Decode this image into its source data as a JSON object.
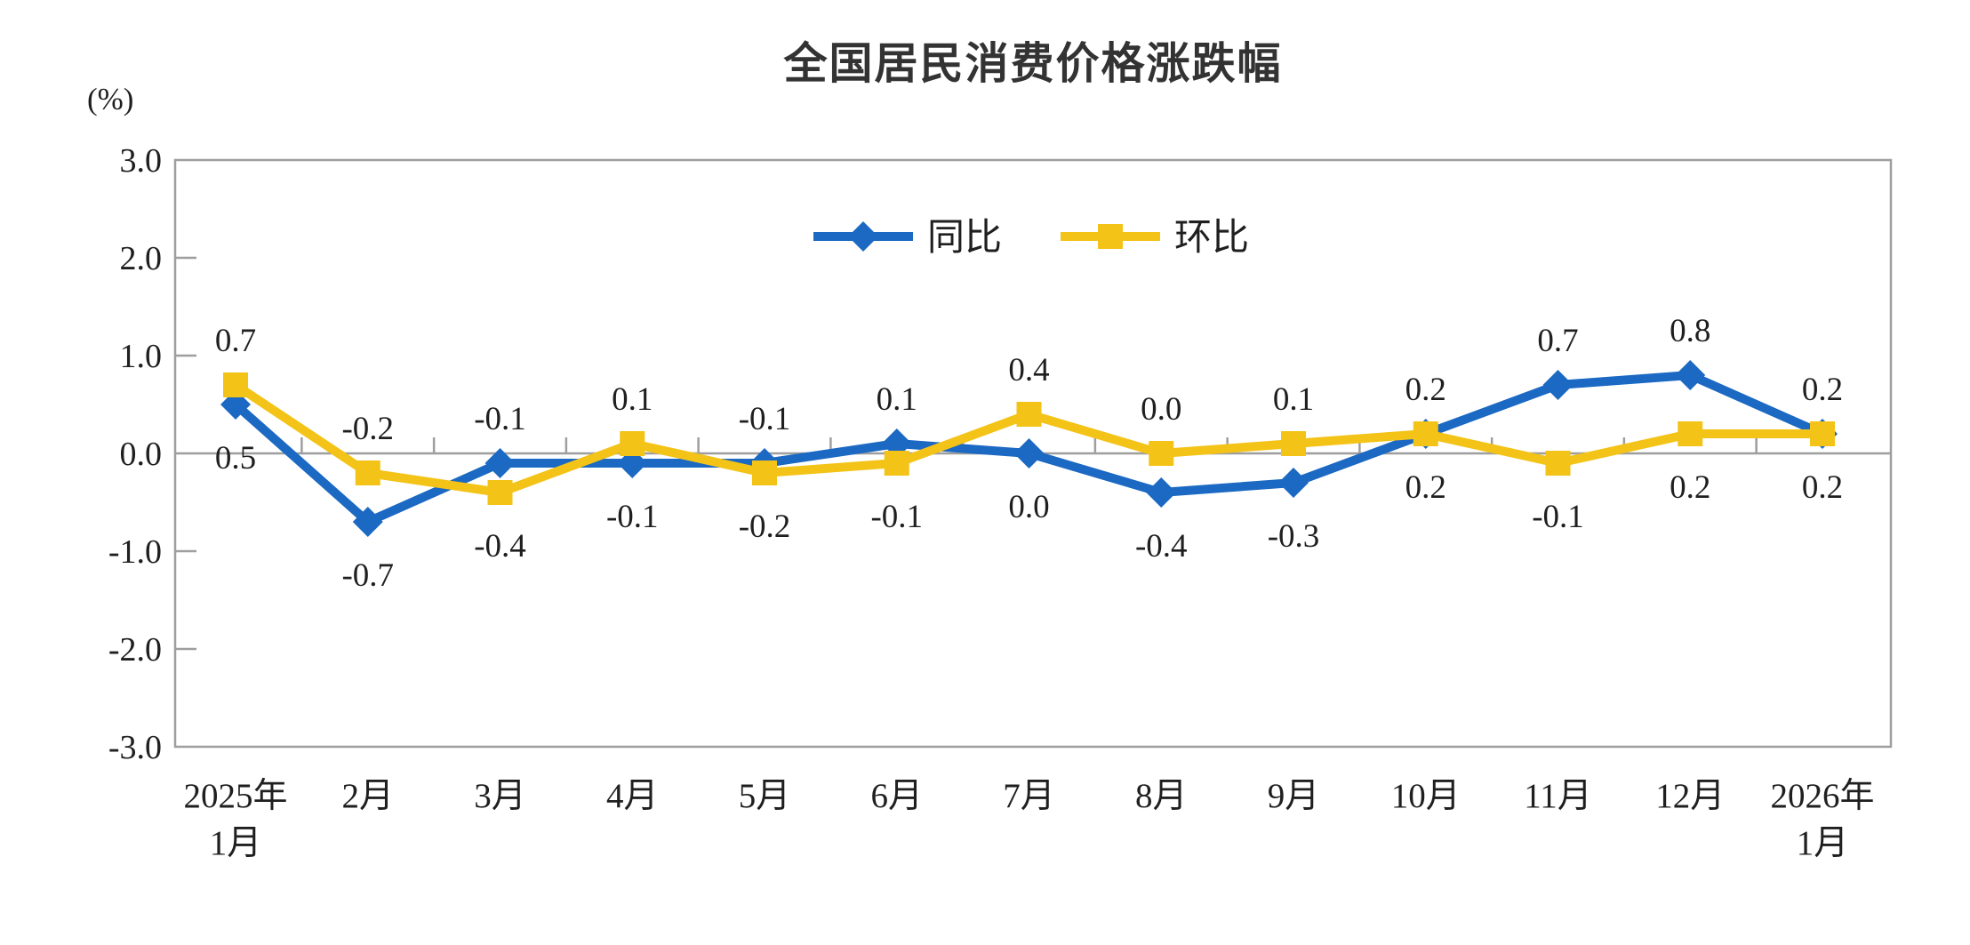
{
  "page": {
    "background": "#ffffff"
  },
  "chart_data": {
    "type": "line",
    "title": "全国居民消费价格涨跌幅",
    "unit_label": "(%)",
    "xlabel": "",
    "ylabel": "(%)",
    "ylim": [
      -3.0,
      3.0
    ],
    "ytick_interval": 1.0,
    "ytick_labels": [
      "3.0",
      "2.0",
      "1.0",
      "0.0",
      "-1.0",
      "-2.0",
      "-3.0"
    ],
    "grid": false,
    "legend_position": "top-center-inside",
    "categories": [
      "2025年1月",
      "2月",
      "3月",
      "4月",
      "5月",
      "6月",
      "7月",
      "8月",
      "9月",
      "10月",
      "11月",
      "12月",
      "2026年1月"
    ],
    "categories_display": [
      [
        "2025年",
        "1月"
      ],
      [
        "2月"
      ],
      [
        "3月"
      ],
      [
        "4月"
      ],
      [
        "5月"
      ],
      [
        "6月"
      ],
      [
        "7月"
      ],
      [
        "8月"
      ],
      [
        "9月"
      ],
      [
        "10月"
      ],
      [
        "11月"
      ],
      [
        "12月"
      ],
      [
        "2026年",
        "1月"
      ]
    ],
    "series": [
      {
        "key": "yoy",
        "name": "同比",
        "marker": "diamond",
        "color": "#1b69c3",
        "values": [
          0.5,
          -0.7,
          -0.1,
          -0.1,
          -0.1,
          0.1,
          0.0,
          -0.4,
          -0.3,
          0.2,
          0.7,
          0.8,
          0.2
        ],
        "data_labels": [
          "0.5",
          "-0.7",
          "-0.1",
          "-0.1",
          "-0.1",
          "0.1",
          "0.0",
          "-0.4",
          "-0.3",
          "0.2",
          "0.7",
          "0.8",
          "0.2"
        ],
        "label_side": [
          "below",
          "below",
          "above",
          "below",
          "above",
          "above",
          "below",
          "below",
          "below",
          "below",
          "above",
          "above",
          "above"
        ]
      },
      {
        "key": "mom",
        "name": "环比",
        "marker": "square",
        "color": "#f3c317",
        "values": [
          0.7,
          -0.2,
          -0.4,
          0.1,
          -0.2,
          -0.1,
          0.4,
          0.0,
          0.1,
          0.2,
          -0.1,
          0.2,
          0.2
        ],
        "data_labels": [
          "0.7",
          "-0.2",
          "-0.4",
          "0.1",
          "-0.2",
          "-0.1",
          "0.4",
          "0.0",
          "0.1",
          "0.2",
          "-0.1",
          "0.2",
          "0.2"
        ],
        "label_side": [
          "above",
          "above",
          "below",
          "above",
          "below",
          "below",
          "above",
          "above",
          "above",
          "above",
          "below",
          "below",
          "below"
        ]
      }
    ],
    "axis_color": "#9e9e9e",
    "label_color": "#1f1f1f",
    "title_color": "#333333"
  }
}
